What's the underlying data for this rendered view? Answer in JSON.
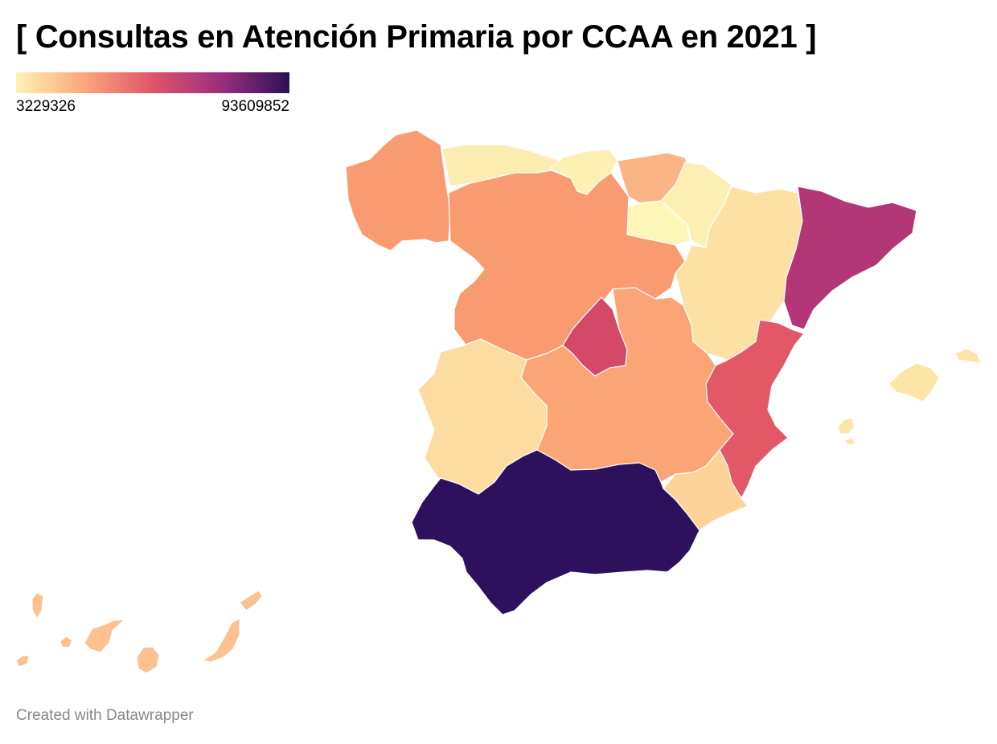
{
  "title": "[ Consultas en Atención Primaria por CCAA en 2021 ]",
  "legend": {
    "min_label": "3229326",
    "max_label": "93609852",
    "min": 3229326,
    "max": 93609852,
    "scale_colors": [
      "#fcf3b4",
      "#fca67a",
      "#e0546a",
      "#9c2e7e",
      "#2b1157"
    ]
  },
  "regions": [
    {
      "id": "galicia",
      "color": "#f99b70"
    },
    {
      "id": "asturias",
      "color": "#fdecb0"
    },
    {
      "id": "cantabria",
      "color": "#fdf0b2"
    },
    {
      "id": "pais-vasco",
      "color": "#fbb486"
    },
    {
      "id": "navarra",
      "color": "#fdefb3"
    },
    {
      "id": "la-rioja",
      "color": "#fef6b9"
    },
    {
      "id": "aragon",
      "color": "#fde0a4"
    },
    {
      "id": "cataluna",
      "color": "#b33676"
    },
    {
      "id": "castilla-y-leon",
      "color": "#f99b70"
    },
    {
      "id": "madrid",
      "color": "#d44868"
    },
    {
      "id": "castilla-la-mancha",
      "color": "#fba476"
    },
    {
      "id": "extremadura",
      "color": "#fddca1"
    },
    {
      "id": "valencia",
      "color": "#e35866"
    },
    {
      "id": "murcia",
      "color": "#fdd39a"
    },
    {
      "id": "andalucia",
      "color": "#2e115c"
    },
    {
      "id": "baleares",
      "color": "#fde4a7"
    },
    {
      "id": "canarias",
      "color": "#fcc18e"
    }
  ],
  "credit": "Created with Datawrapper"
}
